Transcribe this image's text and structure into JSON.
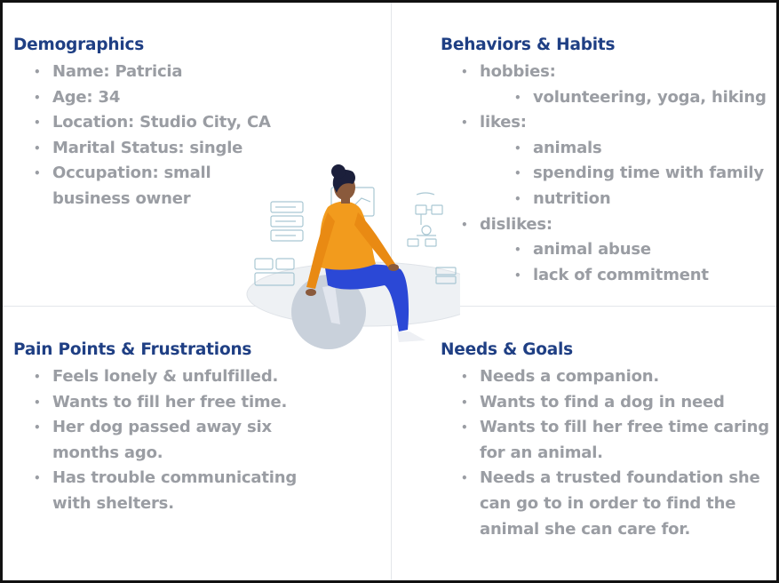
{
  "demographics": {
    "title": "Demographics",
    "items": [
      "Name: Patricia",
      "Age: 34",
      "Location: Studio City, CA",
      "Marital Status: single",
      "Occupation: small",
      "business owner"
    ]
  },
  "behaviors": {
    "title": "Behaviors & Habits",
    "hobbies_label": "hobbies:",
    "hobbies": [
      "volunteering, yoga, hiking"
    ],
    "likes_label": "likes:",
    "likes": [
      "animals",
      "spending time with family",
      "nutrition"
    ],
    "dislikes_label": "dislikes:",
    "dislikes": [
      "animal abuse",
      "lack of commitment"
    ]
  },
  "pain_points": {
    "title": "Pain Points & Frustrations",
    "items": [
      "Feels lonely & unfulfilled.",
      "Wants to fill her free time.",
      "Her dog passed away six",
      "months ago.",
      "Has trouble communicating",
      "with shelters."
    ]
  },
  "needs_goals": {
    "title": "Needs & Goals",
    "items": [
      "Needs a companion.",
      "Wants to find a dog in need",
      "Wants to fill her free time caring",
      "for an animal.",
      "Needs a trusted foundation she",
      "can go to in order to find the",
      "animal she can care for."
    ]
  },
  "colors": {
    "heading": "#1f3f84",
    "body_text": "#9a9da3",
    "divider": "#e3e6ea",
    "jacket": "#f29b1d",
    "pants": "#2b48d6",
    "skin": "#8a5a3c",
    "hair": "#1b1f3b",
    "ball": "#c9d1db"
  },
  "illustration": {
    "icon": "woman-on-exercise-ball-illustration"
  }
}
